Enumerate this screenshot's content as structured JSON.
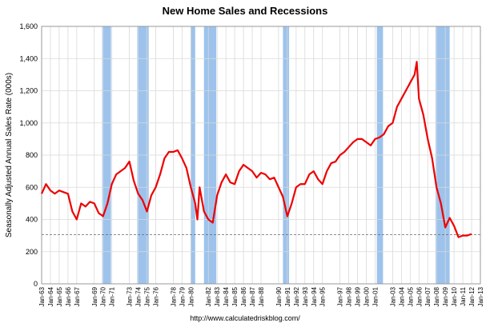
{
  "chart_data": {
    "type": "line",
    "title": "New Home Sales and Recessions",
    "ylabel": "Seasonally Adjusted Annual Sales Rate (000s)",
    "source": "http://www.calculatedriskblog.com/",
    "x": [
      1963.0,
      1963.5,
      1964.0,
      1964.5,
      1965.0,
      1965.5,
      1966.0,
      1966.5,
      1967.0,
      1967.5,
      1968.0,
      1968.5,
      1969.0,
      1969.5,
      1970.0,
      1970.5,
      1971.0,
      1971.5,
      1972.0,
      1972.5,
      1973.0,
      1973.5,
      1974.0,
      1974.5,
      1975.0,
      1975.5,
      1976.0,
      1976.5,
      1977.0,
      1977.5,
      1978.0,
      1978.5,
      1979.0,
      1979.5,
      1980.0,
      1980.5,
      1980.75,
      1981.0,
      1981.5,
      1982.0,
      1982.5,
      1983.0,
      1983.5,
      1984.0,
      1984.5,
      1985.0,
      1985.5,
      1986.0,
      1986.5,
      1987.0,
      1987.5,
      1988.0,
      1988.5,
      1989.0,
      1989.5,
      1990.0,
      1990.5,
      1991.0,
      1991.5,
      1992.0,
      1992.5,
      1993.0,
      1993.5,
      1994.0,
      1994.5,
      1995.0,
      1995.5,
      1996.0,
      1996.5,
      1997.0,
      1997.5,
      1998.0,
      1998.5,
      1999.0,
      1999.5,
      2000.0,
      2000.5,
      2001.0,
      2001.5,
      2002.0,
      2002.5,
      2003.0,
      2003.5,
      2004.0,
      2004.5,
      2005.0,
      2005.5,
      2005.75,
      2006.0,
      2006.5,
      2007.0,
      2007.5,
      2008.0,
      2008.5,
      2009.0,
      2009.5,
      2010.0,
      2010.5,
      2011.0,
      2011.5,
      2012.0
    ],
    "series": [
      {
        "name": "New Home Sales",
        "color": "#ee0000",
        "values": [
          560,
          620,
          580,
          560,
          580,
          570,
          560,
          450,
          400,
          500,
          480,
          510,
          500,
          440,
          420,
          500,
          620,
          680,
          700,
          720,
          760,
          640,
          560,
          520,
          450,
          550,
          600,
          680,
          780,
          820,
          820,
          830,
          780,
          720,
          600,
          500,
          400,
          600,
          450,
          400,
          380,
          550,
          630,
          680,
          630,
          620,
          700,
          740,
          720,
          700,
          660,
          690,
          680,
          650,
          660,
          600,
          540,
          420,
          500,
          600,
          620,
          620,
          680,
          700,
          650,
          620,
          700,
          750,
          760,
          800,
          820,
          850,
          880,
          900,
          900,
          880,
          860,
          900,
          910,
          930,
          980,
          1000,
          1100,
          1150,
          1200,
          1250,
          1300,
          1380,
          1150,
          1050,
          900,
          780,
          600,
          500,
          350,
          410,
          360,
          290,
          300,
          300,
          310
        ]
      }
    ],
    "recessions": [
      [
        1969.9,
        1970.9
      ],
      [
        1973.9,
        1975.2
      ],
      [
        1980.0,
        1980.5
      ],
      [
        1981.5,
        1982.9
      ],
      [
        1990.5,
        1991.2
      ],
      [
        2001.2,
        2001.9
      ],
      [
        2007.9,
        2009.5
      ]
    ],
    "recession_color": "#9dc3ec",
    "ref_line": 305,
    "xlim": [
      1963,
      2013
    ],
    "ylim": [
      0,
      1600
    ],
    "yticks": [
      0,
      200,
      400,
      600,
      800,
      {
        "value": 1000,
        "label": "1,000"
      },
      {
        "value": 1200,
        "label": "1,200"
      },
      {
        "value": 1400,
        "label": "1,400"
      },
      {
        "value": 1600,
        "label": "1,600"
      }
    ],
    "xticks": [
      {
        "value": 1963,
        "label": "Jan-63"
      },
      {
        "value": 1964,
        "label": "Jan-64"
      },
      {
        "value": 1965,
        "label": "Jan-65"
      },
      {
        "value": 1966,
        "label": "Jan-66"
      },
      {
        "value": 1967,
        "label": "Jan-67"
      },
      {
        "value": 1969,
        "label": "Jan-69"
      },
      {
        "value": 1970,
        "label": "Jan-70"
      },
      {
        "value": 1971,
        "label": "Jan-71"
      },
      {
        "value": 1973,
        "label": "Jan-73"
      },
      {
        "value": 1974,
        "label": "Jan-74"
      },
      {
        "value": 1975,
        "label": "Jan-75"
      },
      {
        "value": 1976,
        "label": "Jan-76"
      },
      {
        "value": 1978,
        "label": "Jan-78"
      },
      {
        "value": 1979,
        "label": "Jan-79"
      },
      {
        "value": 1980,
        "label": "Jan-80"
      },
      {
        "value": 1982,
        "label": "Jan-82"
      },
      {
        "value": 1983,
        "label": "Jan-83"
      },
      {
        "value": 1984,
        "label": "Jan-84"
      },
      {
        "value": 1985,
        "label": "Jan-85"
      },
      {
        "value": 1986,
        "label": "Jan-86"
      },
      {
        "value": 1987,
        "label": "Jan-87"
      },
      {
        "value": 1988,
        "label": "Jan-88"
      },
      {
        "value": 1990,
        "label": "Jan-90"
      },
      {
        "value": 1991,
        "label": "Jan-91"
      },
      {
        "value": 1992,
        "label": "Jan-92"
      },
      {
        "value": 1993,
        "label": "Jan-93"
      },
      {
        "value": 1994,
        "label": "Jan-94"
      },
      {
        "value": 1995,
        "label": "Jan-95"
      },
      {
        "value": 1997,
        "label": "Jan-97"
      },
      {
        "value": 1998,
        "label": "Jan-98"
      },
      {
        "value": 1999,
        "label": "Jan-99"
      },
      {
        "value": 2000,
        "label": "Jan-00"
      },
      {
        "value": 2001,
        "label": "Jan-01"
      },
      {
        "value": 2003,
        "label": "Jan-03"
      },
      {
        "value": 2004,
        "label": "Jan-04"
      },
      {
        "value": 2005,
        "label": "Jan-05"
      },
      {
        "value": 2006,
        "label": "Jan-06"
      },
      {
        "value": 2007,
        "label": "Jan-07"
      },
      {
        "value": 2008,
        "label": "Jan-08"
      },
      {
        "value": 2009,
        "label": "Jan-09"
      },
      {
        "value": 2010,
        "label": "Jan-10"
      },
      {
        "value": 2011,
        "label": "Jan-11"
      },
      {
        "value": 2012,
        "label": "Jan-12"
      },
      {
        "value": 2013,
        "label": "Jan-13"
      }
    ],
    "grid": true
  }
}
